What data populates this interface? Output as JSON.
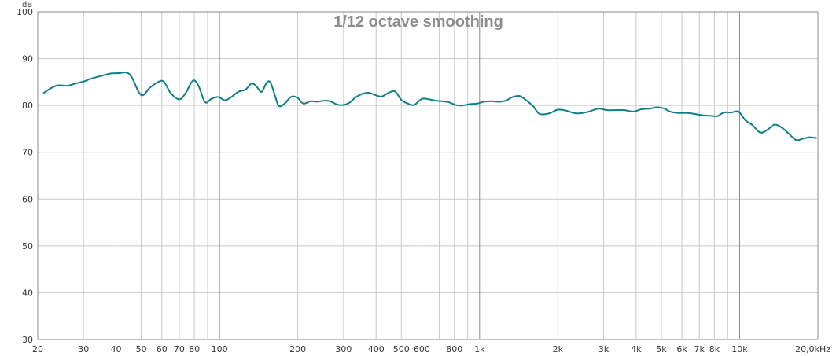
{
  "chart_data": {
    "type": "line",
    "title": "1/12 octave smoothing",
    "ylabel": "dB",
    "xlabel": "",
    "x_scale": "log",
    "xlim": [
      20,
      20000
    ],
    "ylim": [
      30,
      100
    ],
    "grid": true,
    "y_ticks": [
      30,
      40,
      50,
      60,
      70,
      80,
      90,
      100
    ],
    "y_tick_labels": [
      "30",
      "40",
      "50",
      "60",
      "70",
      "80",
      "90",
      "100"
    ],
    "x_ticks": [
      20,
      30,
      40,
      50,
      60,
      70,
      80,
      100,
      200,
      300,
      400,
      500,
      600,
      800,
      1000,
      2000,
      3000,
      4000,
      5000,
      6000,
      7000,
      8000,
      10000,
      20000
    ],
    "x_tick_labels": [
      "20",
      "30",
      "40",
      "50",
      "60",
      "70",
      "80",
      "100",
      "200",
      "300",
      "400",
      "500",
      "600",
      "800",
      "1k",
      "2k",
      "3k",
      "4k",
      "5k",
      "6k",
      "7k",
      "8k",
      "10k",
      "20,0kHz"
    ],
    "x_minor_gridlines": [
      90,
      700,
      900,
      9000
    ],
    "x_major_gridlines": [
      100,
      1000,
      10000
    ],
    "series": [
      {
        "name": "",
        "color": "#0f7f85",
        "x": [
          21,
          22.5,
          24,
          26,
          28,
          30,
          32,
          35,
          38,
          41,
          44,
          46,
          50,
          54,
          58,
          61,
          65,
          70,
          74,
          79,
          83,
          88,
          93,
          99,
          105,
          111,
          118,
          126,
          133,
          139,
          145,
          152,
          157,
          163,
          169,
          178,
          188,
          199,
          210,
          224,
          237,
          250,
          266,
          283,
          300,
          316,
          335,
          355,
          376,
          398,
          420,
          447,
          473,
          500,
          530,
          560,
          600,
          640,
          680,
          720,
          760,
          810,
          860,
          920,
          980,
          1040,
          1110,
          1190,
          1260,
          1340,
          1430,
          1520,
          1610,
          1700,
          1850,
          2000,
          2150,
          2350,
          2600,
          2850,
          3100,
          3350,
          3600,
          3900,
          4200,
          4500,
          4800,
          5100,
          5400,
          5800,
          6200,
          6700,
          7200,
          7700,
          8200,
          8700,
          9300,
          9900,
          10500,
          11200,
          12000,
          12800,
          13600,
          14500,
          15500,
          16500,
          17500,
          18600,
          19800
        ],
        "y": [
          82.6,
          83.7,
          84.3,
          84.2,
          84.7,
          85.1,
          85.7,
          86.3,
          86.8,
          86.9,
          87.0,
          86.0,
          82.2,
          83.8,
          85.0,
          85.1,
          82.6,
          81.3,
          82.6,
          85.3,
          84.2,
          80.7,
          81.4,
          81.8,
          81.1,
          81.8,
          82.9,
          83.4,
          84.7,
          84.0,
          82.9,
          84.9,
          84.9,
          82.3,
          79.9,
          80.4,
          81.8,
          81.7,
          80.4,
          80.9,
          80.8,
          81.0,
          80.9,
          80.2,
          80.1,
          80.6,
          81.8,
          82.5,
          82.7,
          82.2,
          81.9,
          82.7,
          83.0,
          81.2,
          80.4,
          80.1,
          81.4,
          81.3,
          81.0,
          80.9,
          80.7,
          80.1,
          80.0,
          80.3,
          80.4,
          80.8,
          80.9,
          80.8,
          81.0,
          81.8,
          82.0,
          81.0,
          79.8,
          78.2,
          78.3,
          79.1,
          78.9,
          78.3,
          78.6,
          79.3,
          79.0,
          79.0,
          79.0,
          78.7,
          79.2,
          79.3,
          79.6,
          79.4,
          78.7,
          78.4,
          78.4,
          78.2,
          77.9,
          77.8,
          77.7,
          78.5,
          78.5,
          78.7,
          76.9,
          75.8,
          74.2,
          74.8,
          75.9,
          75.3,
          73.9,
          72.6,
          72.9,
          73.2,
          73.0
        ]
      }
    ]
  }
}
